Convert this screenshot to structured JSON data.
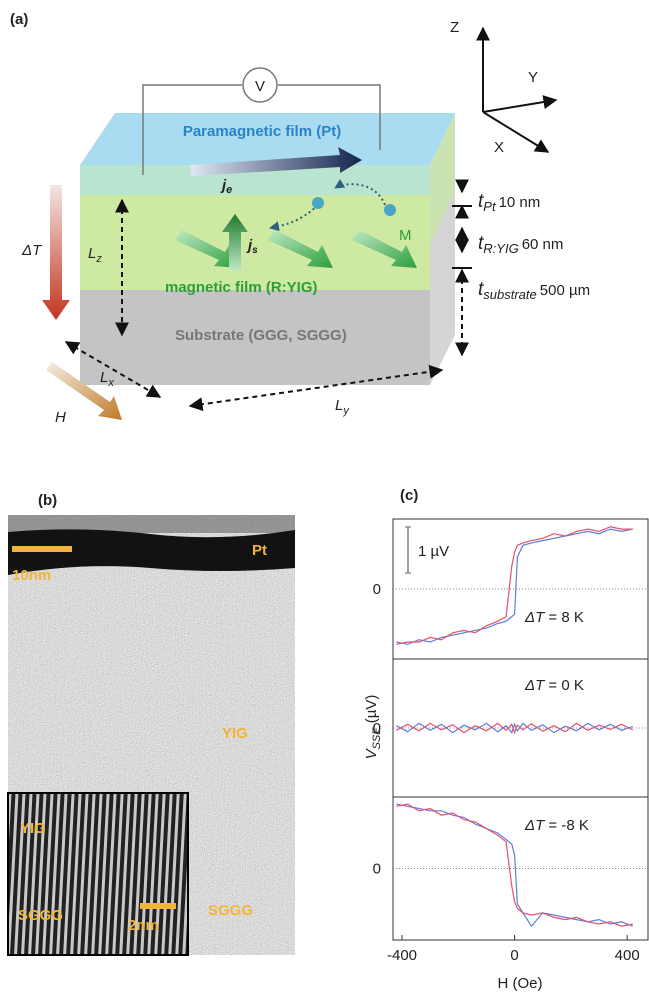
{
  "panel_a": {
    "label": "(a)",
    "axes": {
      "z": "Z",
      "y": "Y",
      "x": "X"
    },
    "voltmeter": "V",
    "pt_film": "Paramagnetic film (Pt)",
    "je": {
      "main": "j",
      "sub": "e"
    },
    "js": {
      "main": "j",
      "sub": "s"
    },
    "magnetization": "M",
    "magnetic_film": "magnetic film (R:YIG)",
    "substrate": "Substrate (GGG, SGGG)",
    "delta_t": "ΔT",
    "lz": {
      "main": "L",
      "sub": "z"
    },
    "lx": {
      "main": "L",
      "sub": "x"
    },
    "ly": {
      "main": "L",
      "sub": "y"
    },
    "field": "H",
    "thicknesses": [
      {
        "symbol": "t",
        "sub": "Pt",
        "value": "10 nm"
      },
      {
        "symbol": "t",
        "sub": "R:YIG",
        "value": "60 nm"
      },
      {
        "symbol": "t",
        "sub": "substrate",
        "value": "500 µm"
      }
    ]
  },
  "panel_b": {
    "label": "(b)",
    "scale_bar": "10nm",
    "pt": "Pt",
    "yig": "YIG",
    "sggg": "SGGG",
    "inset": {
      "yig": "YIG",
      "sggg": "SGGG",
      "scale_bar": "2nm"
    }
  },
  "chart_data": {
    "type": "line",
    "label": "(c)",
    "ylabel": {
      "main": "V",
      "sub": "SSE",
      "unit": " (µV)"
    },
    "xlabel": "H (Oe)",
    "x": [
      -420,
      -380,
      -340,
      -300,
      -260,
      -220,
      -180,
      -140,
      -100,
      -60,
      -30,
      -10,
      0,
      10,
      30,
      60,
      100,
      140,
      180,
      220,
      260,
      300,
      340,
      380,
      420
    ],
    "xlim": [
      -432,
      474
    ],
    "xticks": [
      -400,
      0,
      400
    ],
    "scale_bar": {
      "value": 1,
      "label": "1 µV"
    },
    "panels": [
      {
        "annotation": {
          "symbol": "ΔT",
          "text": " = 8 K"
        },
        "ylim": [
          -1.52,
          1.52
        ],
        "yticks": [
          0
        ],
        "series": [
          {
            "color": "#5b7fe0",
            "values": [
              -1.15,
              -1.2,
              -1.1,
              -1.15,
              -1.05,
              -1.0,
              -0.95,
              -0.9,
              -0.85,
              -0.75,
              -0.7,
              -0.6,
              -0.55,
              0.7,
              0.95,
              1.0,
              1.05,
              1.1,
              1.15,
              1.2,
              1.25,
              1.2,
              1.3,
              1.25,
              1.3
            ]
          },
          {
            "color": "#e8506a",
            "values": [
              -1.2,
              -1.15,
              -1.15,
              -1.05,
              -1.1,
              -0.95,
              -0.9,
              -0.95,
              -0.8,
              -0.7,
              -0.6,
              0.5,
              0.8,
              0.95,
              1.0,
              1.05,
              1.1,
              1.2,
              1.15,
              1.25,
              1.3,
              1.25,
              1.35,
              1.3,
              1.3
            ]
          }
        ]
      },
      {
        "annotation": {
          "symbol": "ΔT",
          "text": " = 0 K"
        },
        "ylim": [
          -1.5,
          1.5
        ],
        "yticks": [
          0
        ],
        "series": [
          {
            "color": "#5b7fe0",
            "values": [
              0.05,
              -0.08,
              0.1,
              -0.05,
              0.08,
              -0.1,
              0.06,
              -0.04,
              0.1,
              -0.08,
              0.05,
              -0.1,
              0.08,
              -0.06,
              0.1,
              -0.05,
              0.07,
              -0.1,
              0.04,
              -0.06,
              0.1,
              -0.04,
              0.08,
              -0.05,
              0.03
            ]
          },
          {
            "color": "#e8506a",
            "values": [
              -0.05,
              0.08,
              -0.06,
              0.1,
              -0.04,
              0.07,
              -0.1,
              0.05,
              -0.06,
              0.1,
              -0.05,
              0.08,
              -0.1,
              0.06,
              -0.04,
              0.09,
              -0.07,
              0.05,
              -0.08,
              0.1,
              -0.05,
              0.06,
              -0.03,
              0.08,
              -0.04
            ]
          }
        ]
      },
      {
        "annotation": {
          "symbol": "ΔT",
          "text": " = -8 K"
        },
        "ylim": [
          -1.61,
          1.61
        ],
        "yticks": [
          0
        ],
        "series": [
          {
            "color": "#5b7fe0",
            "values": [
              1.45,
              1.4,
              1.35,
              1.3,
              1.3,
              1.2,
              1.15,
              1.0,
              0.9,
              0.8,
              0.65,
              0.55,
              0.3,
              -0.8,
              -1.0,
              -1.3,
              -1.0,
              -1.05,
              -1.1,
              -1.15,
              -1.2,
              -1.15,
              -1.25,
              -1.2,
              -1.3
            ]
          },
          {
            "color": "#e8506a",
            "values": [
              1.4,
              1.45,
              1.3,
              1.35,
              1.2,
              1.25,
              1.1,
              1.05,
              0.9,
              0.75,
              0.6,
              -0.4,
              -0.75,
              -0.9,
              -1.0,
              -1.05,
              -1.0,
              -1.1,
              -1.15,
              -1.1,
              -1.2,
              -1.25,
              -1.2,
              -1.3,
              -1.25
            ]
          }
        ]
      }
    ]
  }
}
